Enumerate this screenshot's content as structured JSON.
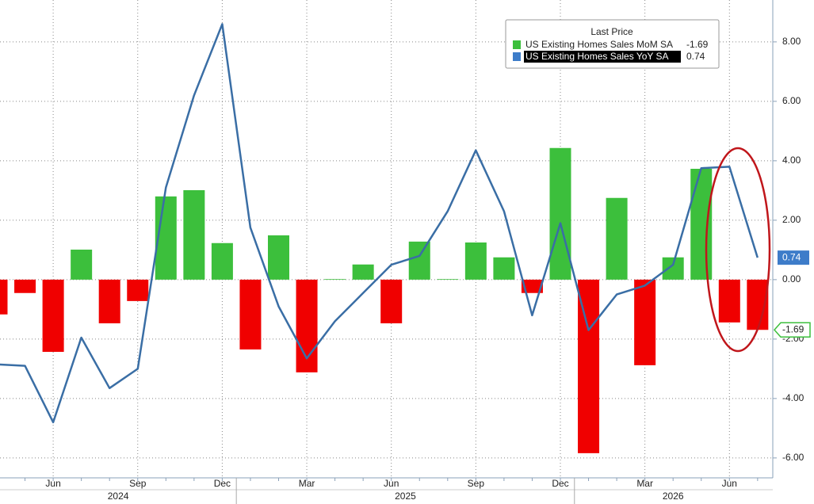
{
  "chart_data": {
    "type": "bar_line",
    "legend_title": "Last Price",
    "categories": [
      null,
      null,
      "Jun",
      null,
      null,
      "Sep",
      null,
      null,
      "Dec",
      null,
      null,
      "Mar",
      null,
      null,
      "Jun",
      null,
      null,
      "Sep",
      null,
      null,
      "Dec",
      null,
      null,
      "Mar",
      null,
      null,
      "Jun",
      null
    ],
    "year_labels": [
      "2024",
      "2025",
      "2026"
    ],
    "series": [
      {
        "name": "US Existing Homes Sales MoM SA",
        "type": "bar",
        "color": "#3cbf3c",
        "negative_color": "#f00000",
        "last_label": "-1.69",
        "values": [
          -1.17,
          -0.45,
          -2.43,
          1.01,
          -1.47,
          -0.72,
          2.8,
          3.01,
          1.23,
          -2.35,
          1.49,
          -3.12,
          0.02,
          0.51,
          -1.47,
          1.28,
          0.02,
          1.25,
          0.75,
          -0.45,
          4.43,
          -5.84,
          2.75,
          -2.88,
          0.75,
          3.73,
          -1.44,
          -1.69
        ]
      },
      {
        "name": "US Existing Homes Sales YoY SA",
        "type": "line",
        "color": "#3a6ea5",
        "legend_color": "#3d7cc9",
        "last_label": "0.74",
        "values": [
          -2.85,
          -2.9,
          -4.8,
          -1.95,
          -3.65,
          -3.0,
          3.1,
          6.2,
          8.6,
          1.75,
          -0.9,
          -2.65,
          -1.4,
          -0.45,
          0.5,
          0.8,
          2.3,
          4.35,
          2.3,
          -1.2,
          1.9,
          -1.7,
          -0.5,
          -0.2,
          0.5,
          3.75,
          3.8,
          0.74
        ]
      }
    ],
    "ylim": [
      -6.67,
      9.41
    ],
    "yticks": [
      {
        "value": -6,
        "label": "-6.00"
      },
      {
        "value": -4,
        "label": "-4.00"
      },
      {
        "value": -2,
        "label": "-2.00"
      },
      {
        "value": 0,
        "label": "0.00"
      },
      {
        "value": 2,
        "label": "2.00"
      },
      {
        "value": 4,
        "label": "4.00"
      },
      {
        "value": 6,
        "label": "6.00"
      },
      {
        "value": 8,
        "label": "8.00"
      }
    ],
    "grid": true
  }
}
